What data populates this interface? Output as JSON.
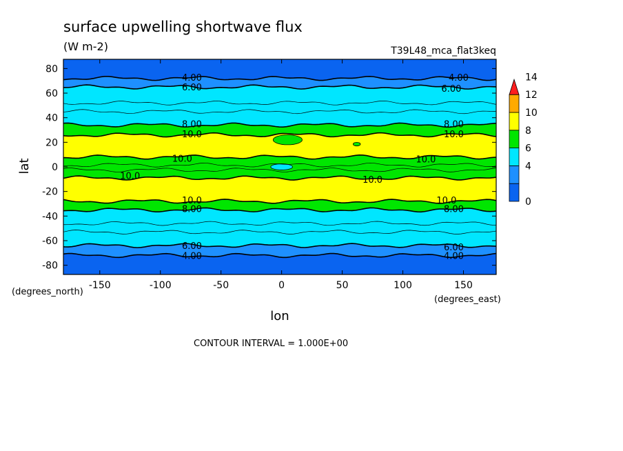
{
  "chart_data": {
    "type": "heatmap",
    "title": "surface upwelling shortwave flux",
    "units": "(W m-2)",
    "run_label": "T39L48_mca_flat3keq",
    "xlabel": "lon",
    "ylabel": "lat",
    "x_units": "(degrees_east)",
    "y_units": "(degrees_north)",
    "xlim": [
      -180,
      177
    ],
    "ylim": [
      -87.5,
      87.5
    ],
    "x_ticks": [
      -150,
      -100,
      -50,
      0,
      50,
      100,
      150
    ],
    "y_ticks": [
      -80,
      -60,
      -40,
      -20,
      0,
      20,
      40,
      60,
      80
    ],
    "x_tick_labels": [
      "-150",
      "-100",
      "-50",
      "0",
      "50",
      "100",
      "150"
    ],
    "y_tick_labels": [
      "-80",
      "-60",
      "-40",
      "-20",
      "0",
      "20",
      "40",
      "60",
      "80"
    ],
    "footer": "CONTOUR INTERVAL = 1.000E+00",
    "colorbar": {
      "levels": [
        0,
        2,
        4,
        6,
        8,
        10,
        12,
        14
      ],
      "level_labels": [
        "0",
        "4",
        "6",
        "8",
        "10",
        "12",
        "14"
      ],
      "label_values": [
        0,
        4,
        6,
        8,
        10,
        12,
        14
      ],
      "colors": [
        "#0a64f0",
        "#1e90ff",
        "#00e6ff",
        "#00e600",
        "#ffff00",
        "#ffaa00",
        "#ff1e1e"
      ]
    },
    "bands": [
      {
        "lat_from": 87.5,
        "lat_to": 72,
        "value": "0-4",
        "color": "#0a64f0"
      },
      {
        "lat_from": 72,
        "lat_to": 65,
        "value": "4-6",
        "color": "#1e90ff"
      },
      {
        "lat_from": 65,
        "lat_to": 34,
        "value": "6-8",
        "color": "#00e6ff"
      },
      {
        "lat_from": 34,
        "lat_to": 26,
        "value": "8-10",
        "color": "#00e600"
      },
      {
        "lat_from": 26,
        "lat_to": 8,
        "value": "10-12",
        "color": "#ffff00"
      },
      {
        "lat_from": 8,
        "lat_to": -9,
        "value": "8-10",
        "color": "#00e600"
      },
      {
        "lat_from": -9,
        "lat_to": -28,
        "value": "10-12",
        "color": "#ffff00"
      },
      {
        "lat_from": -28,
        "lat_to": -35,
        "value": "8-10",
        "color": "#00e600"
      },
      {
        "lat_from": -35,
        "lat_to": -64,
        "value": "6-8",
        "color": "#00e6ff"
      },
      {
        "lat_from": -64,
        "lat_to": -72,
        "value": "4-6",
        "color": "#1e90ff"
      },
      {
        "lat_from": -72,
        "lat_to": -87.5,
        "value": "0-4",
        "color": "#0a64f0"
      }
    ],
    "blobs": [
      {
        "lon": 0,
        "lat": 0,
        "rx_deg": 9,
        "ry_deg": 2.5,
        "value": "6-8",
        "color": "#00e6ff"
      },
      {
        "lon": 62,
        "lat": 18.5,
        "rx_deg": 3,
        "ry_deg": 1.5,
        "value": "8-10",
        "color": "#00e600"
      },
      {
        "lon": 5,
        "lat": 22,
        "rx_deg": 12,
        "ry_deg": 4,
        "value": "8-10",
        "color": "#00e600"
      }
    ],
    "contours": [
      {
        "lat": 73,
        "label": "4.00"
      },
      {
        "lat": 65,
        "label": "6.00"
      },
      {
        "lat": 34,
        "label": "8.00"
      },
      {
        "lat": 27,
        "label": "10.0"
      },
      {
        "lat": 7,
        "label": "10.0"
      },
      {
        "lat": -8,
        "label": "10.0"
      },
      {
        "lat": -28,
        "label": "10.0"
      },
      {
        "lat": -35,
        "label": "8.00"
      },
      {
        "lat": -64,
        "label": "6.00"
      },
      {
        "lat": -73,
        "label": "4.00"
      }
    ],
    "contour_labels": [
      {
        "text": "4.00",
        "lon": -74,
        "lat": 73
      },
      {
        "text": "4.00",
        "lon": 146,
        "lat": 73
      },
      {
        "text": "6.00",
        "lon": -74,
        "lat": 65
      },
      {
        "text": "6.00",
        "lon": 140,
        "lat": 64
      },
      {
        "text": "8.00",
        "lon": -74,
        "lat": 35
      },
      {
        "text": "8.00",
        "lon": 142,
        "lat": 35
      },
      {
        "text": "10.0",
        "lon": -74,
        "lat": 27
      },
      {
        "text": "10.0",
        "lon": 142,
        "lat": 27
      },
      {
        "text": "10.0",
        "lon": -82,
        "lat": 7
      },
      {
        "text": "10.0",
        "lon": 119,
        "lat": 6.5
      },
      {
        "text": "10.0",
        "lon": -125,
        "lat": -7
      },
      {
        "text": "10.0",
        "lon": 75,
        "lat": -10
      },
      {
        "text": "10.0",
        "lon": -74,
        "lat": -27
      },
      {
        "text": "10.0",
        "lon": 136,
        "lat": -27
      },
      {
        "text": "8.00",
        "lon": -74,
        "lat": -34
      },
      {
        "text": "8.00",
        "lon": 142,
        "lat": -34
      },
      {
        "text": "6.00",
        "lon": -74,
        "lat": -64
      },
      {
        "text": "6.00",
        "lon": 142,
        "lat": -65
      },
      {
        "text": "4.00",
        "lon": -74,
        "lat": -72
      },
      {
        "text": "4.00",
        "lon": 142,
        "lat": -72
      }
    ]
  }
}
